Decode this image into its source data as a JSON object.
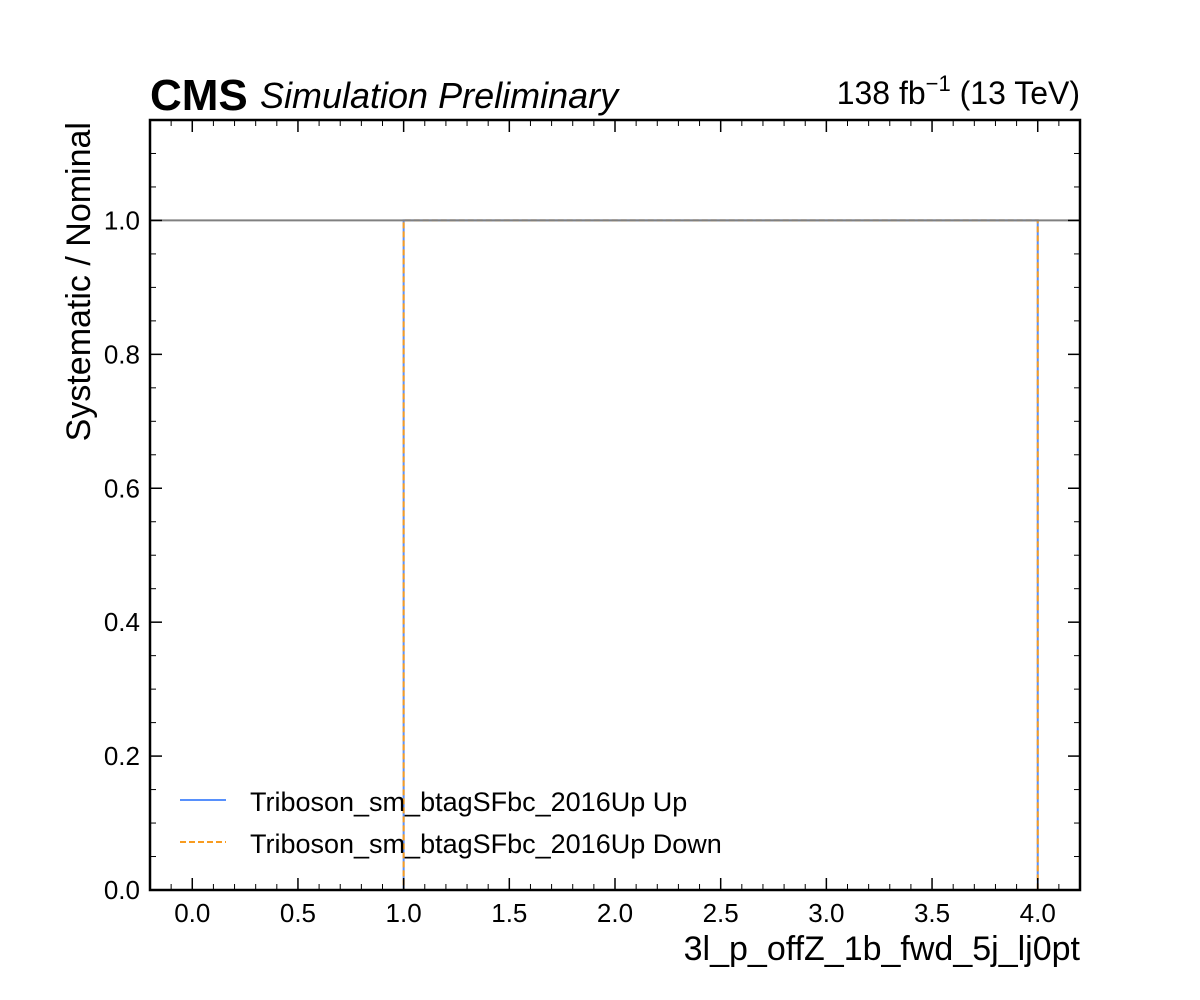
{
  "header": {
    "experiment": "CMS",
    "status": "Simulation Preliminary",
    "lumi_value": "138 fb",
    "lumi_exp": "−1",
    "lumi_energy": " (13 TeV)"
  },
  "chart_data": {
    "type": "line",
    "title": "",
    "xlabel": "3l_p_offZ_1b_fwd_5j_lj0pt",
    "ylabel": "Systematic / Nominal",
    "xlim": [
      -0.2,
      4.2
    ],
    "ylim": [
      0.0,
      1.15
    ],
    "xticks": [
      0.0,
      0.5,
      1.0,
      1.5,
      2.0,
      2.5,
      3.0,
      3.5,
      4.0
    ],
    "xtick_labels": [
      "0.0",
      "0.5",
      "1.0",
      "1.5",
      "2.0",
      "2.5",
      "3.0",
      "3.5",
      "4.0"
    ],
    "yticks": [
      0.0,
      0.2,
      0.4,
      0.6,
      0.8,
      1.0
    ],
    "ytick_labels": [
      "0.0",
      "0.2",
      "0.4",
      "0.6",
      "0.8",
      "1.0"
    ],
    "reference_line": {
      "y": 1.0,
      "color": "#808080"
    },
    "grid": false,
    "legend_position": "lower-left",
    "series": [
      {
        "name": "Triboson_sm_btagSFbc_2016Up Up",
        "color": "#5790fc",
        "style": "solid",
        "bin_edges": [
          0,
          1,
          2,
          3,
          4
        ],
        "values": [
          0.0,
          1.0,
          1.0,
          1.0
        ]
      },
      {
        "name": "Triboson_sm_btagSFbc_2016Up Down",
        "color": "#f89c20",
        "style": "dashed",
        "bin_edges": [
          0,
          1,
          2,
          3,
          4
        ],
        "values": [
          0.0,
          1.0,
          1.0,
          1.0
        ]
      }
    ]
  }
}
